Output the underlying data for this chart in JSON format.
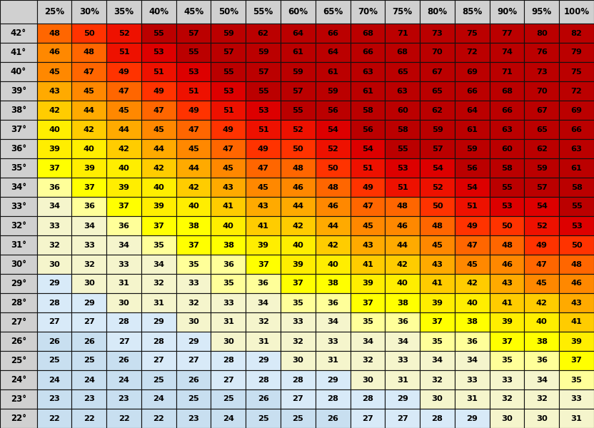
{
  "col_headers": [
    "25%",
    "30%",
    "35%",
    "40%",
    "45%",
    "50%",
    "55%",
    "60%",
    "65%",
    "70%",
    "75%",
    "80%",
    "85%",
    "90%",
    "95%",
    "100%"
  ],
  "row_headers": [
    "42°",
    "41°",
    "40°",
    "39°",
    "38°",
    "37°",
    "36°",
    "35°",
    "34°",
    "33°",
    "32°",
    "31°",
    "30°",
    "29°",
    "28°",
    "27°",
    "26°",
    "25°",
    "24°",
    "23°",
    "22°"
  ],
  "values": [
    [
      48,
      50,
      52,
      55,
      57,
      59,
      62,
      64,
      66,
      68,
      71,
      73,
      75,
      77,
      80,
      82
    ],
    [
      46,
      48,
      51,
      53,
      55,
      57,
      59,
      61,
      64,
      66,
      68,
      70,
      72,
      74,
      76,
      79
    ],
    [
      45,
      47,
      49,
      51,
      53,
      55,
      57,
      59,
      61,
      63,
      65,
      67,
      69,
      71,
      73,
      75
    ],
    [
      43,
      45,
      47,
      49,
      51,
      53,
      55,
      57,
      59,
      61,
      63,
      65,
      66,
      68,
      70,
      72
    ],
    [
      42,
      44,
      45,
      47,
      49,
      51,
      53,
      55,
      56,
      58,
      60,
      62,
      64,
      66,
      67,
      69
    ],
    [
      40,
      42,
      44,
      45,
      47,
      49,
      51,
      52,
      54,
      56,
      58,
      59,
      61,
      63,
      65,
      66
    ],
    [
      39,
      40,
      42,
      44,
      45,
      47,
      49,
      50,
      52,
      54,
      55,
      57,
      59,
      60,
      62,
      63
    ],
    [
      37,
      39,
      40,
      42,
      44,
      45,
      47,
      48,
      50,
      51,
      53,
      54,
      56,
      58,
      59,
      61
    ],
    [
      36,
      37,
      39,
      40,
      42,
      43,
      45,
      46,
      48,
      49,
      51,
      52,
      54,
      55,
      57,
      58
    ],
    [
      34,
      36,
      37,
      39,
      40,
      41,
      43,
      44,
      46,
      47,
      48,
      50,
      51,
      53,
      54,
      55
    ],
    [
      33,
      34,
      36,
      37,
      38,
      40,
      41,
      42,
      44,
      45,
      46,
      48,
      49,
      50,
      52,
      53
    ],
    [
      32,
      33,
      34,
      35,
      37,
      38,
      39,
      40,
      42,
      43,
      44,
      45,
      47,
      48,
      49,
      50
    ],
    [
      30,
      32,
      33,
      34,
      35,
      36,
      37,
      39,
      40,
      41,
      42,
      43,
      45,
      46,
      47,
      48
    ],
    [
      29,
      30,
      31,
      32,
      33,
      35,
      36,
      37,
      38,
      39,
      40,
      41,
      42,
      43,
      45,
      46
    ],
    [
      28,
      29,
      30,
      31,
      32,
      33,
      34,
      35,
      36,
      37,
      38,
      39,
      40,
      41,
      42,
      43
    ],
    [
      27,
      27,
      28,
      29,
      30,
      31,
      32,
      33,
      34,
      35,
      36,
      37,
      38,
      39,
      40,
      41
    ],
    [
      26,
      26,
      27,
      28,
      29,
      30,
      31,
      32,
      33,
      34,
      34,
      35,
      36,
      37,
      38,
      39
    ],
    [
      25,
      25,
      26,
      27,
      27,
      28,
      29,
      30,
      31,
      32,
      33,
      34,
      34,
      35,
      36,
      37
    ],
    [
      24,
      24,
      24,
      25,
      26,
      27,
      28,
      28,
      29,
      30,
      31,
      32,
      33,
      33,
      34,
      35
    ],
    [
      23,
      23,
      23,
      24,
      25,
      25,
      26,
      27,
      28,
      28,
      29,
      30,
      31,
      32,
      32,
      33
    ],
    [
      22,
      22,
      22,
      22,
      23,
      24,
      25,
      25,
      26,
      27,
      27,
      28,
      29,
      30,
      30,
      31
    ]
  ],
  "header_bg": "#d0d0d0",
  "border_color": "#111111",
  "text_color": "#000000",
  "figsize": [
    8.32,
    6.0
  ],
  "dpi": 100,
  "color_map": [
    [
      22,
      "#c6dcf0"
    ],
    [
      24,
      "#c6dcf0"
    ],
    [
      26,
      "#c6dcf0"
    ],
    [
      27,
      "#dce8f5"
    ],
    [
      28,
      "#dce8f5"
    ],
    [
      29,
      "#dce8f5"
    ],
    [
      30,
      "#f5f5c8"
    ],
    [
      31,
      "#f5f5c8"
    ],
    [
      32,
      "#f5f5c8"
    ],
    [
      33,
      "#f5f5c8"
    ],
    [
      34,
      "#f5f5c8"
    ],
    [
      35,
      "#ffff99"
    ],
    [
      36,
      "#ffff55"
    ],
    [
      37,
      "#ffff00"
    ],
    [
      38,
      "#ffee00"
    ],
    [
      39,
      "#ffdd00"
    ],
    [
      40,
      "#ffcc00"
    ],
    [
      41,
      "#ffbb00"
    ],
    [
      42,
      "#ffaa00"
    ],
    [
      43,
      "#ff9900"
    ],
    [
      44,
      "#ff8800"
    ],
    [
      45,
      "#ff7700"
    ],
    [
      46,
      "#ff6600"
    ],
    [
      47,
      "#ff5500"
    ],
    [
      48,
      "#ff4400"
    ],
    [
      49,
      "#ff3300"
    ],
    [
      50,
      "#ee2200"
    ],
    [
      51,
      "#dd1100"
    ],
    [
      52,
      "#cc0000"
    ],
    [
      53,
      "#bb0000"
    ],
    [
      54,
      "#aa0000"
    ],
    [
      999,
      "#990000"
    ]
  ]
}
